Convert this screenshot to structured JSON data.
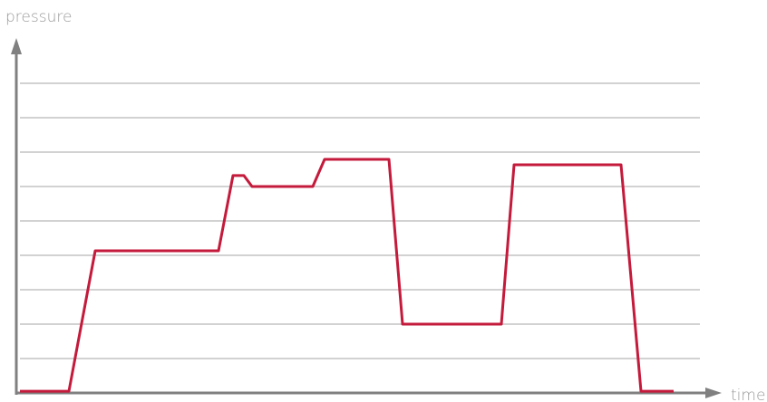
{
  "chart_data": {
    "type": "line",
    "y_label": "pressure",
    "x_label": "time",
    "x": [
      2,
      56,
      85,
      221,
      237,
      249,
      258,
      325,
      338,
      409,
      424,
      533,
      547,
      665,
      687,
      723
    ],
    "series": [
      {
        "name": "pressure",
        "color": "#c41a3b",
        "values": [
          0.05,
          0.05,
          4.13,
          4.13,
          6.32,
          6.32,
          6.0,
          6.0,
          6.79,
          6.79,
          2.0,
          2.0,
          6.63,
          6.63,
          0.05,
          0.05
        ]
      }
    ],
    "xlim": [
      0,
      760
    ],
    "ylim": [
      0,
      10
    ],
    "yticks": [
      1,
      2,
      3,
      4,
      5,
      6,
      7,
      8,
      9
    ],
    "grid": true
  }
}
